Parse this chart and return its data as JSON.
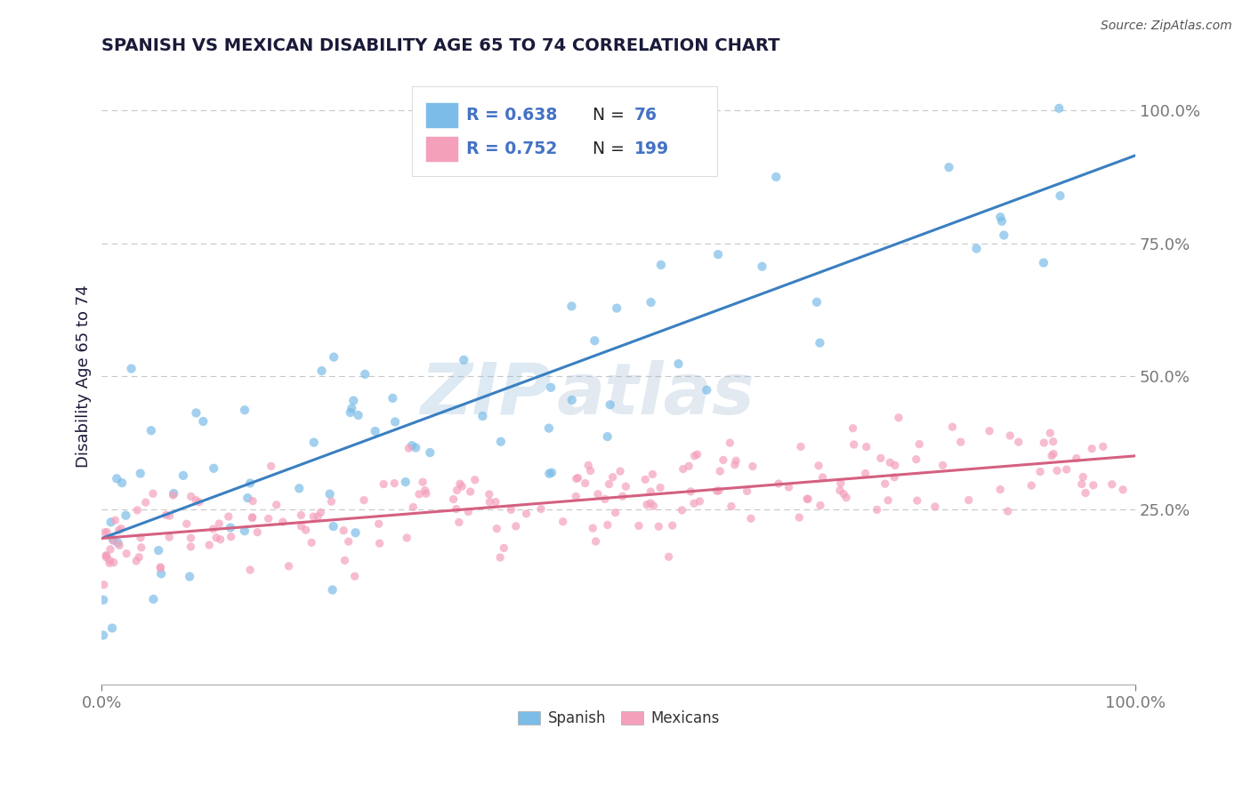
{
  "title": "SPANISH VS MEXICAN DISABILITY AGE 65 TO 74 CORRELATION CHART",
  "source": "Source: ZipAtlas.com",
  "ylabel": "Disability Age 65 to 74",
  "xlim": [
    0,
    1.0
  ],
  "ylim": [
    -0.08,
    1.08
  ],
  "ytick_labels": [
    "25.0%",
    "50.0%",
    "75.0%",
    "100.0%"
  ],
  "ytick_vals": [
    0.25,
    0.5,
    0.75,
    1.0
  ],
  "spanish_R": 0.638,
  "spanish_N": 76,
  "mexican_R": 0.752,
  "mexican_N": 199,
  "spanish_color": "#7bbde8",
  "mexican_color": "#f4a0bb",
  "spanish_line_color": "#3a7fc1",
  "mexican_line_color": "#d46080",
  "watermark_zip": "ZIP",
  "watermark_atlas": "atlas",
  "legend_label_spanish": "Spanish",
  "legend_label_mexican": "Mexicans",
  "background_color": "#ffffff",
  "grid_color": "#c8c8c8",
  "title_color": "#1a1a3a",
  "axis_label_color": "#1a1a3a",
  "legend_r_color": "#4472c4",
  "legend_n_color": "#4472c4",
  "tick_color": "#777777",
  "spanish_line_intercept": 0.195,
  "spanish_line_slope": 0.72,
  "mexican_line_intercept": 0.195,
  "mexican_line_slope": 0.155
}
